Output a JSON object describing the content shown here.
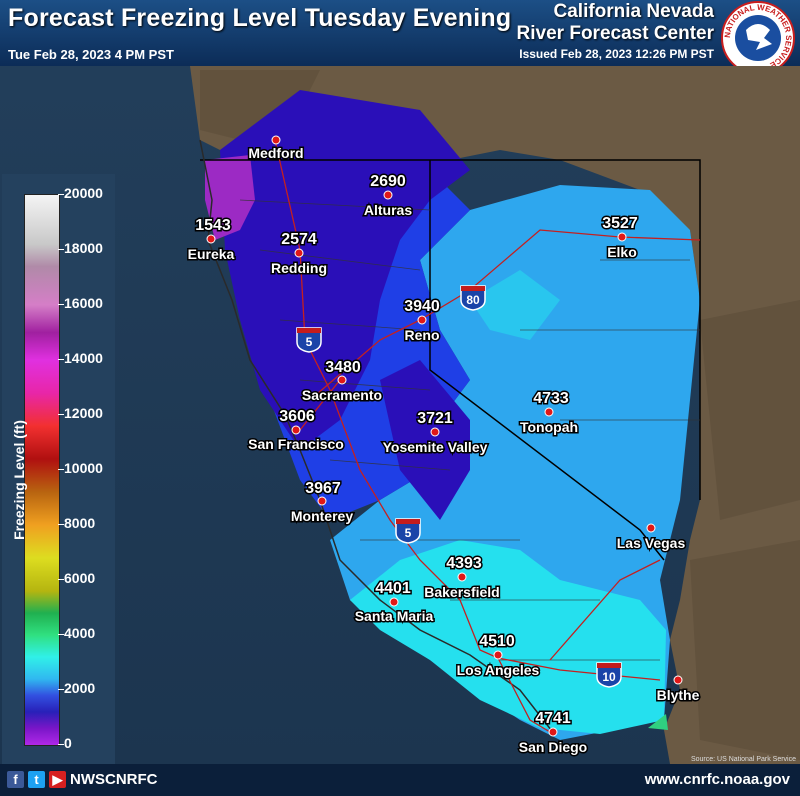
{
  "header": {
    "title": "Forecast Freezing Level Tuesday Evening",
    "valid_time": "Tue Feb 28, 2023 4 PM PST",
    "org_line1": "California Nevada",
    "org_line2": "River Forecast Center",
    "issued": "Issued Feb 28, 2023 12:26 PM PST",
    "logo_text": "NATIONAL WEATHER SERVICE"
  },
  "legend": {
    "title": "Freezing Level (ft)",
    "ticks": [
      "20000",
      "18000",
      "16000",
      "14000",
      "12000",
      "10000",
      "8000",
      "6000",
      "4000",
      "2000",
      "0"
    ]
  },
  "map": {
    "source": "Source: US National Park Service",
    "interstates": [
      "80",
      "5",
      "5",
      "10"
    ],
    "colors": {
      "deep": "#2a0fb8",
      "mid": "#1f3fe6",
      "light": "#2ea7ee",
      "cyan": "#25e0ee",
      "purple": "#9c2ac4",
      "land": "#6b5a44"
    },
    "cities": [
      {
        "name": "Medford",
        "value": ""
      },
      {
        "name": "Eureka",
        "value": "1543"
      },
      {
        "name": "Alturas",
        "value": "2690"
      },
      {
        "name": "Redding",
        "value": "2574"
      },
      {
        "name": "Elko",
        "value": "3527"
      },
      {
        "name": "Reno",
        "value": "3940"
      },
      {
        "name": "Sacramento",
        "value": "3480"
      },
      {
        "name": "San Francisco",
        "value": "3606"
      },
      {
        "name": "Yosemite Valley",
        "value": "3721"
      },
      {
        "name": "Tonopah",
        "value": "4733"
      },
      {
        "name": "Monterey",
        "value": "3967"
      },
      {
        "name": "Las Vegas",
        "value": ""
      },
      {
        "name": "Bakersfield",
        "value": "4393"
      },
      {
        "name": "Santa Maria",
        "value": "4401"
      },
      {
        "name": "Los Angeles",
        "value": "4510"
      },
      {
        "name": "Blythe",
        "value": ""
      },
      {
        "name": "San Diego",
        "value": "4741"
      }
    ]
  },
  "footer": {
    "facebook_icon": "f",
    "twitter_icon": "t",
    "youtube_icon": "▶",
    "handle": "NWSCNRFC",
    "website": "www.cnrfc.noaa.gov"
  }
}
